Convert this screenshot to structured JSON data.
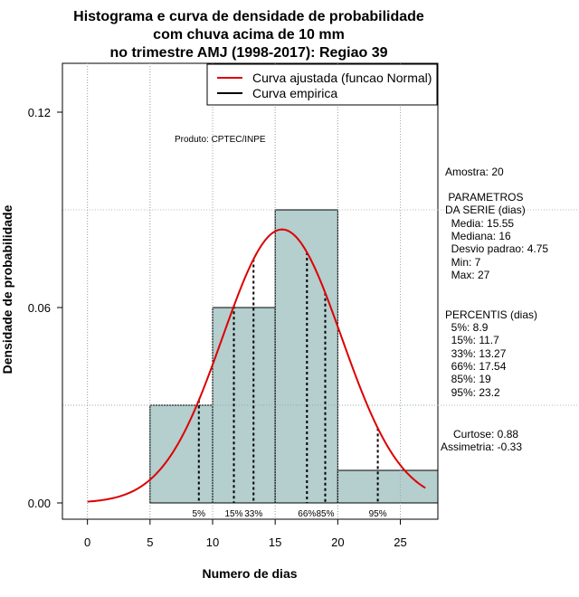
{
  "chart_data": {
    "type": "bar",
    "title_lines": [
      "Histograma e curva de densidade de probabilidade",
      "com chuva acima de 10 mm",
      "no trimestre AMJ (1998-2017): Regiao 39"
    ],
    "xlabel": "Numero de dias",
    "ylabel": "Densidade de probabilidade",
    "xlim": [
      -2,
      28
    ],
    "ylim": [
      -0.005,
      0.135
    ],
    "xticks": [
      0,
      5,
      10,
      15,
      20,
      25
    ],
    "yticks": [
      0.0,
      0.06,
      0.12
    ],
    "ytick_labels": [
      "0.00",
      "0.06",
      "0.12"
    ],
    "grid": true,
    "bins": [
      {
        "from": 5,
        "to": 10,
        "density": 0.03
      },
      {
        "from": 10,
        "to": 15,
        "density": 0.06
      },
      {
        "from": 15,
        "to": 20,
        "density": 0.09
      },
      {
        "from": 20,
        "to": 28,
        "density": 0.01
      }
    ],
    "normal_curve": {
      "mean": 15.55,
      "sd": 4.75,
      "x_from": 0,
      "x_to": 27,
      "color": "#dd0000"
    },
    "percentiles": [
      {
        "label": "5%",
        "x": 8.9
      },
      {
        "label": "15%",
        "x": 11.7
      },
      {
        "label": "33%",
        "x": 13.27
      },
      {
        "label": "66%",
        "x": 17.54
      },
      {
        "label": "85%",
        "x": 19
      },
      {
        "label": "95%",
        "x": 23.2
      }
    ],
    "legend": {
      "placement": "top-right",
      "entries": [
        {
          "label": "Curva ajustada (funcao Normal)",
          "color": "#dd0000"
        },
        {
          "label": "Curva empirica",
          "color": "#000000"
        }
      ]
    },
    "colors": {
      "bar_fill": "#b5cece",
      "bar_stroke": "#000000"
    },
    "annotations": {
      "produto": "Produto: CPTEC/INPE",
      "amostra": "Amostra: 20",
      "parametros_lines": [
        " PARAMETROS",
        "DA SERIE (dias)",
        "  Media: 15.55",
        "  Mediana: 16",
        "  Desvio padrao: 4.75",
        "  Min: 7",
        "  Max: 27"
      ],
      "percentis_lines": [
        "PERCENTIS (dias)",
        "  5%: 8.9",
        "  15%: 11.7",
        "  33%: 13.27",
        "  66%: 17.54",
        "  85%: 19",
        "  95%: 23.2"
      ],
      "curtose": "Curtose: 0.88",
      "assimetria": "Assimetria: -0.33"
    }
  }
}
